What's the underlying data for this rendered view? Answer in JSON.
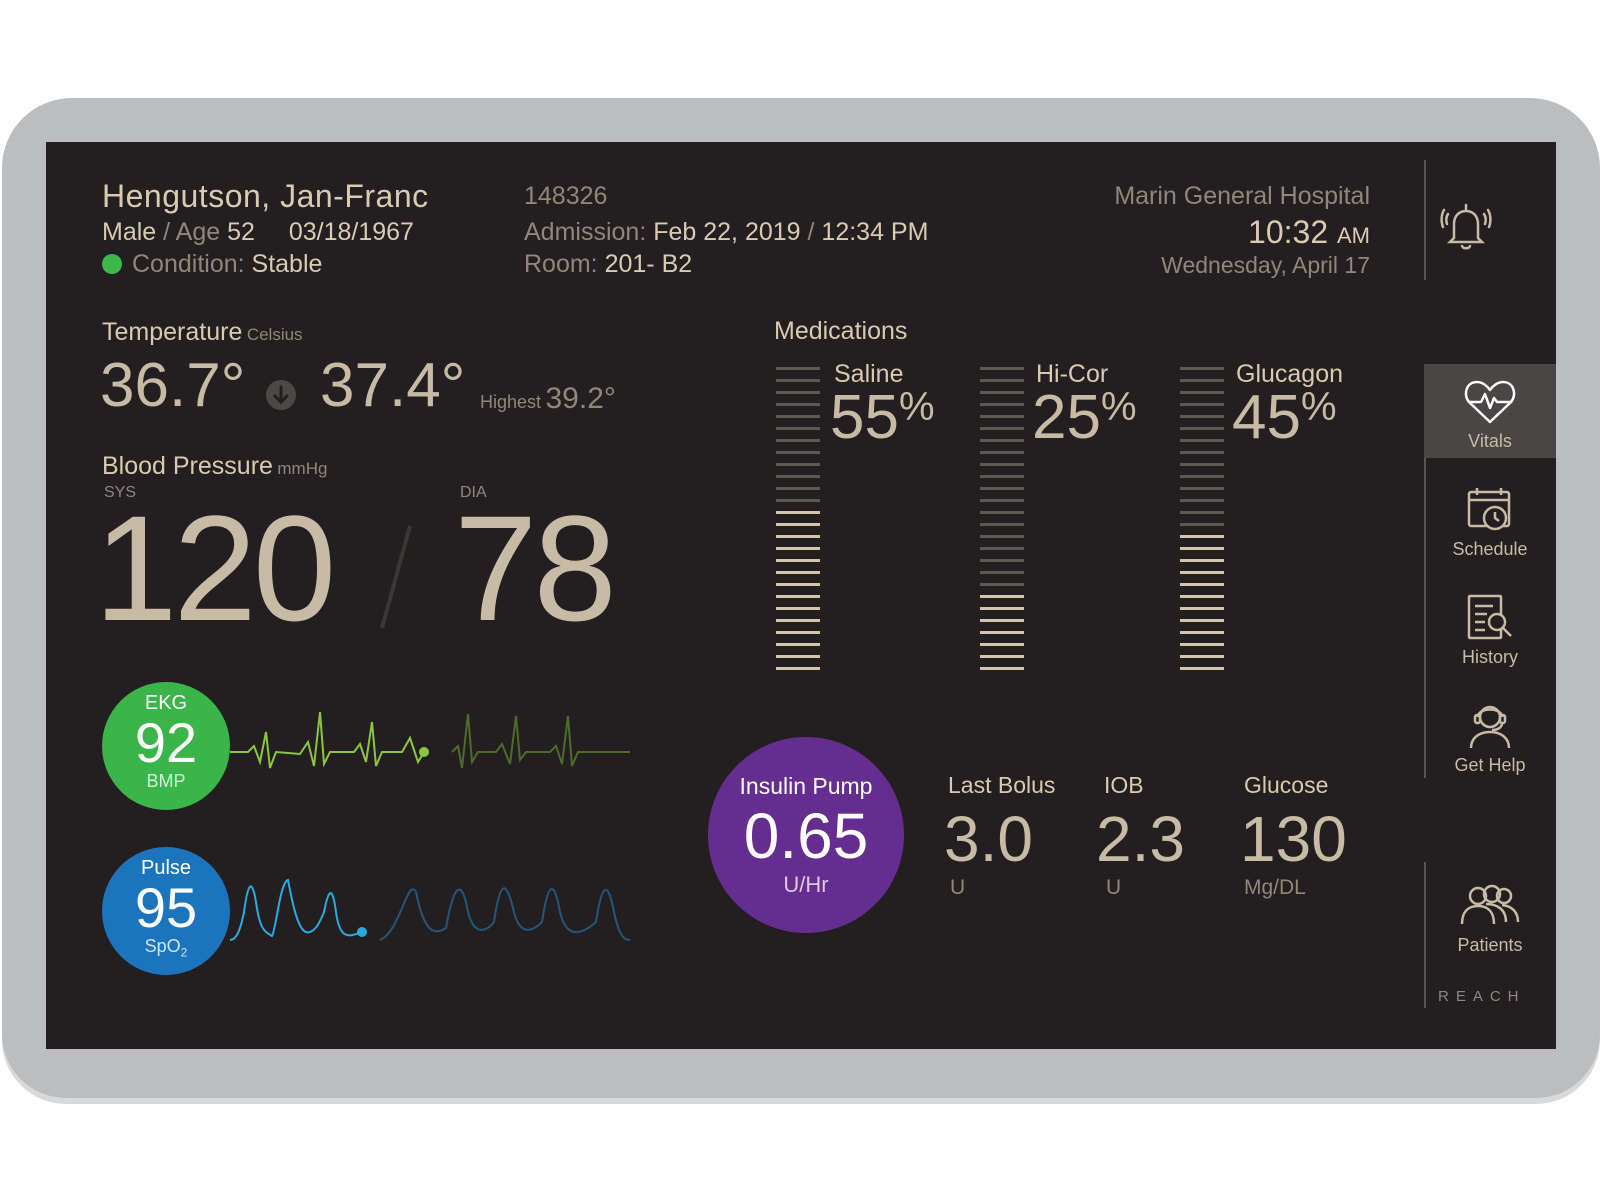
{
  "patient": {
    "name": "Hengutson, Jan-Franc",
    "sex": "Male",
    "age_label": "Age",
    "age": "52",
    "dob": "03/18/1967",
    "condition_label": "Condition:",
    "condition": "Stable",
    "id": "148326",
    "admission_label": "Admission:",
    "admission_date": "Feb 22, 2019",
    "admission_time": "12:34 PM",
    "room_label": "Room:",
    "room": "201- B2"
  },
  "facility": {
    "hospital": "Marin General Hospital",
    "time": "10:32",
    "ampm": "AM",
    "date": "Wednesday, April 17"
  },
  "temperature": {
    "label": "Temperature",
    "unit": "Celsius",
    "current": "36.7°",
    "previous": "37.4°",
    "highest_label": "Highest",
    "highest": "39.2°"
  },
  "blood_pressure": {
    "label": "Blood Pressure",
    "unit": "mmHg",
    "sys_label": "SYS",
    "dia_label": "DIA",
    "sys": "120",
    "dia": "78"
  },
  "ekg": {
    "label": "EKG",
    "value": "92",
    "unit": "BMP",
    "color": "#39b54a",
    "wave_color": "#8cc63f"
  },
  "pulse": {
    "label": "Pulse",
    "value": "95",
    "unit": "SpO",
    "unit_sub": "2",
    "color": "#1c75bc",
    "wave_color": "#29aae1"
  },
  "medications": {
    "title": "Medications",
    "items": [
      {
        "name": "Saline",
        "percent": "55",
        "fraction": 0.55
      },
      {
        "name": "Hi-Cor",
        "percent": "25",
        "fraction": 0.25
      },
      {
        "name": "Glucagon",
        "percent": "45",
        "fraction": 0.45
      }
    ],
    "pct_sign": "%"
  },
  "insulin": {
    "label": "Insulin Pump",
    "value": "0.65",
    "unit": "U/Hr",
    "color": "#662d91",
    "last_bolus_label": "Last Bolus",
    "last_bolus": "3.0",
    "last_bolus_unit": "U",
    "iob_label": "IOB",
    "iob": "2.3",
    "iob_unit": "U",
    "glucose_label": "Glucose",
    "glucose": "130",
    "glucose_unit": "Mg/DL"
  },
  "sidebar": {
    "items": [
      {
        "label": "Vitals",
        "icon": "heart-pulse-icon"
      },
      {
        "label": "Schedule",
        "icon": "calendar-clock-icon"
      },
      {
        "label": "History",
        "icon": "document-search-icon"
      },
      {
        "label": "Get Help",
        "icon": "headset-person-icon"
      },
      {
        "label": "Patients",
        "icon": "people-group-icon"
      }
    ],
    "alarm_icon": "bell-alarm-icon",
    "brand": "REACH"
  }
}
